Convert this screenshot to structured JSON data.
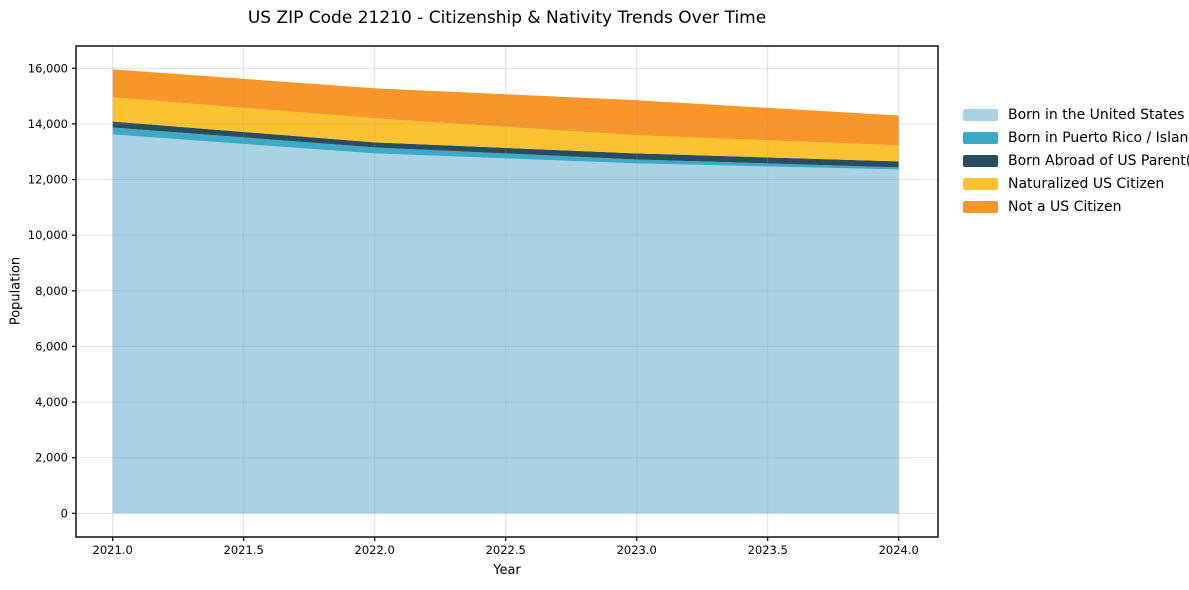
{
  "title": "US ZIP Code 21210 - Citizenship & Nativity Trends Over Time",
  "chart_data": {
    "type": "area",
    "stacked": true,
    "title": "US ZIP Code 21210 - Citizenship & Nativity Trends Over Time",
    "xlabel": "Year",
    "ylabel": "Population",
    "x": [
      2021,
      2022,
      2023,
      2024
    ],
    "series": [
      {
        "name": "Born in the United States",
        "color": "#a8d3e5",
        "values": [
          13620,
          12940,
          12580,
          12360
        ]
      },
      {
        "name": "Born in Puerto Rico / Islands",
        "color": "#3ea9c7",
        "values": [
          250,
          215,
          140,
          75
        ]
      },
      {
        "name": "Born Abroad of US Parent(s)",
        "color": "#274d5f",
        "values": [
          215,
          180,
          220,
          215
        ]
      },
      {
        "name": "Naturalized US Citizen",
        "color": "#fcc230",
        "values": [
          870,
          865,
          650,
          580
        ]
      },
      {
        "name": "Not a US Citizen",
        "color": "#f79729",
        "values": [
          1005,
          1080,
          1260,
          1070
        ]
      }
    ],
    "stack_totals": [
      15960,
      15280,
      14850,
      14300
    ],
    "xticks": [
      2021.0,
      2021.5,
      2022.0,
      2022.5,
      2023.0,
      2023.5,
      2024.0
    ],
    "yticks": [
      0,
      2000,
      4000,
      6000,
      8000,
      10000,
      12000,
      14000,
      16000
    ],
    "xlim": [
      2020.86,
      2024.15
    ],
    "ylim": [
      -850,
      16800
    ],
    "grid": true,
    "legend_position": "outside-right",
    "colors": {
      "spine": "#000000",
      "grid": "rgba(153,153,153,0.30)",
      "text": "#000000",
      "background": "#ffffff"
    }
  }
}
